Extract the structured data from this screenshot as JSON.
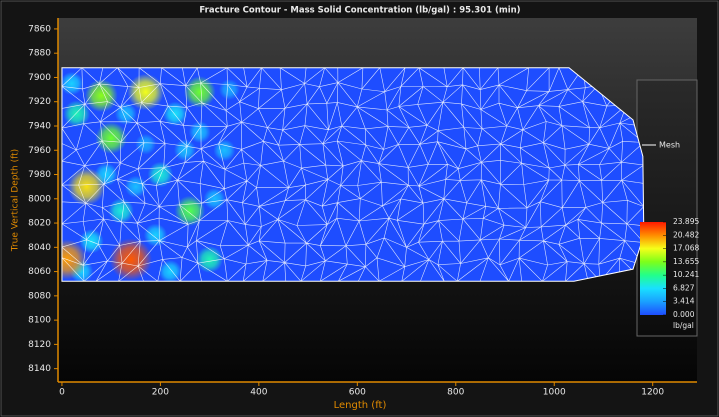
{
  "chart_data": {
    "type": "contour",
    "title": "Fracture Contour - Mass Solid Concentration (lb/gal) : 95.301 (min)",
    "xlabel": "Length (ft)",
    "ylabel": "True Vertical Depth (ft)",
    "xlim": [
      -8,
      1290
    ],
    "ylim": [
      7851,
      8151
    ],
    "y_inverted": true,
    "xticks": [
      0,
      200,
      400,
      600,
      800,
      1000,
      1200
    ],
    "yticks": [
      7860,
      7880,
      7900,
      7920,
      7940,
      7960,
      7980,
      8000,
      8020,
      8040,
      8060,
      8080,
      8100,
      8120,
      8140
    ],
    "axis_color": "#e08a00",
    "outline": {
      "x": [
        0,
        1030,
        1160,
        1180,
        1182,
        1160,
        1040,
        0
      ],
      "y": [
        7892,
        7892,
        7935,
        7965,
        8030,
        8058,
        8068,
        8068
      ]
    },
    "hotspots": {
      "x": [
        10,
        50,
        80,
        140,
        170,
        100,
        280,
        260,
        30,
        200,
        300,
        120,
        60,
        230,
        330,
        20,
        90,
        150,
        190,
        250,
        310,
        40,
        220,
        130,
        340,
        280,
        170
      ],
      "y": [
        8050,
        7990,
        7915,
        8050,
        7912,
        7950,
        7912,
        8010,
        7930,
        7980,
        8050,
        8010,
        8035,
        7930,
        7960,
        7905,
        7980,
        7990,
        8030,
        7960,
        8000,
        8060,
        8060,
        7930,
        7910,
        7945,
        7955
      ],
      "values": [
        20,
        18,
        14,
        22,
        17,
        13,
        13,
        12,
        9,
        8,
        9,
        8,
        7,
        7,
        5,
        6,
        6,
        5,
        6,
        5,
        5,
        6,
        6,
        5,
        4,
        5,
        4
      ]
    },
    "mesh": true,
    "legend": {
      "name": "Mesh",
      "color": "#ffffff"
    },
    "colorbar": {
      "unit": "lb/gal",
      "ticks": [
        {
          "value": 0,
          "label": "0.000"
        },
        3.414,
        6.827,
        10.241,
        13.655,
        17.068,
        20.482,
        23.895
      ],
      "colors": [
        "#1e4dff",
        "#1aa0ff",
        "#19e0ff",
        "#22ff8a",
        "#7dff1a",
        "#f5ff1a",
        "#ff8c00",
        "#ff1a00"
      ]
    }
  }
}
